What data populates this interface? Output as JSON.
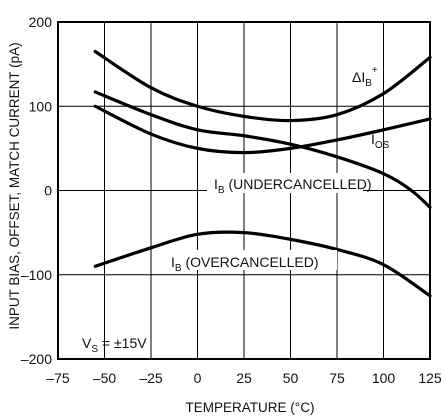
{
  "chart_data": {
    "type": "line",
    "xlabel": "TEMPERATURE (°C)",
    "ylabel": "INPUT BIAS, OFFSET, MATCH CURRENT (pA)",
    "xlim": [
      -75,
      125
    ],
    "ylim": [
      -200,
      200
    ],
    "xticks": [
      "–75",
      "–50",
      "–25",
      "0",
      "25",
      "50",
      "75",
      "100",
      "125"
    ],
    "yticks": [
      "200",
      "100",
      "0",
      "–100",
      "–200"
    ],
    "grid": true,
    "series": [
      {
        "name": "ΔIB+",
        "x": [
          -55,
          -25,
          0,
          25,
          50,
          75,
          100,
          125
        ],
        "y": [
          165,
          122,
          100,
          88,
          83,
          90,
          115,
          158
        ]
      },
      {
        "name": "IOS",
        "x": [
          -55,
          -25,
          0,
          25,
          50,
          75,
          100,
          125
        ],
        "y": [
          100,
          67,
          50,
          45,
          50,
          60,
          72,
          85
        ]
      },
      {
        "name": "IB (UNDERCANCELLED)",
        "x": [
          -55,
          -25,
          0,
          25,
          50,
          75,
          100,
          115,
          125
        ],
        "y": [
          117,
          90,
          72,
          65,
          55,
          40,
          20,
          0,
          -20
        ]
      },
      {
        "name": "IB (OVERCANCELLED)",
        "x": [
          -55,
          -25,
          0,
          25,
          50,
          75,
          100,
          125
        ],
        "y": [
          -90,
          -68,
          -52,
          -50,
          -58,
          -70,
          -88,
          -125
        ]
      }
    ]
  },
  "labels": {
    "s0": {
      "main": "ΔI",
      "sub": "B",
      "sup": "+"
    },
    "s1": {
      "main": "I",
      "sub": "OS"
    },
    "s2": {
      "main": "I",
      "sub": "B",
      "rest": " (UNDERCANCELLED)"
    },
    "s3": {
      "main": "I",
      "sub": "B",
      "rest": " (OVERCANCELLED)"
    },
    "vs": {
      "main": "V",
      "sub": "S",
      "rest": " = ±15V"
    }
  }
}
